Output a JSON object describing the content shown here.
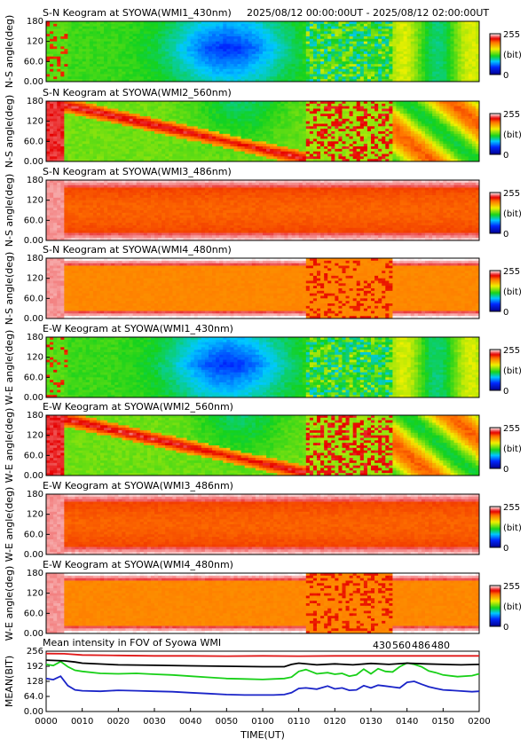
{
  "header": {
    "time_range": "2025/08/12 00:00:00UT - 2025/08/12 02:00:00UT"
  },
  "chart_data": [
    {
      "type": "heatmap",
      "title": "S-N Keogram at SYOWA(WMI1_430nm)",
      "ylabel": "N-S angle(deg)",
      "yticks": [
        "0.00",
        "60.0",
        "120",
        "180"
      ],
      "ylim": [
        0,
        180
      ],
      "colorbar": {
        "max": "255",
        "unit": "(bit)",
        "min": "0"
      },
      "palette": "dim"
    },
    {
      "type": "heatmap",
      "title": "S-N Keogram at SYOWA(WMI2_560nm)",
      "ylabel": "N-S angle(deg)",
      "yticks": [
        "0.00",
        "60.0",
        "120",
        "180"
      ],
      "ylim": [
        0,
        180
      ],
      "colorbar": {
        "max": "255",
        "unit": "(bit)",
        "min": "0"
      },
      "palette": "bright"
    },
    {
      "type": "heatmap",
      "title": "S-N Keogram at SYOWA(WMI3_486nm)",
      "ylabel": "N-S angle(deg)",
      "yticks": [
        "0.00",
        "60.0",
        "120",
        "180"
      ],
      "ylim": [
        0,
        180
      ],
      "colorbar": {
        "max": "255",
        "unit": "(bit)",
        "min": "0"
      },
      "palette": "red"
    },
    {
      "type": "heatmap",
      "title": "S-N Keogram at SYOWA(WMI4_480nm)",
      "ylabel": "N-S angle(deg)",
      "yticks": [
        "0.00",
        "60.0",
        "120",
        "180"
      ],
      "ylim": [
        0,
        180
      ],
      "colorbar": {
        "max": "255",
        "unit": "(bit)",
        "min": "0"
      },
      "palette": "orange"
    },
    {
      "type": "heatmap",
      "title": "E-W Keogram at SYOWA(WMI1_430nm)",
      "ylabel": "W-E angle(deg)",
      "yticks": [
        "0.00",
        "60.0",
        "120",
        "180"
      ],
      "ylim": [
        0,
        180
      ],
      "colorbar": {
        "max": "255",
        "unit": "(bit)",
        "min": "0"
      },
      "palette": "dim"
    },
    {
      "type": "heatmap",
      "title": "E-W Keogram at SYOWA(WMI2_560nm)",
      "ylabel": "W-E angle(deg)",
      "yticks": [
        "0.00",
        "60.0",
        "120",
        "180"
      ],
      "ylim": [
        0,
        180
      ],
      "colorbar": {
        "max": "255",
        "unit": "(bit)",
        "min": "0"
      },
      "palette": "bright"
    },
    {
      "type": "heatmap",
      "title": "E-W Keogram at SYOWA(WMI3_486nm)",
      "ylabel": "W-E angle(deg)",
      "yticks": [
        "0.00",
        "60.0",
        "120",
        "180"
      ],
      "ylim": [
        0,
        180
      ],
      "colorbar": {
        "max": "255",
        "unit": "(bit)",
        "min": "0"
      },
      "palette": "red"
    },
    {
      "type": "heatmap",
      "title": "E-W Keogram at SYOWA(WMI4_480nm)",
      "ylabel": "W-E angle(deg)",
      "yticks": [
        "0.00",
        "60.0",
        "120",
        "180"
      ],
      "ylim": [
        0,
        180
      ],
      "colorbar": {
        "max": "255",
        "unit": "(bit)",
        "min": "0"
      },
      "palette": "orange"
    },
    {
      "type": "line",
      "title": "Mean intensity in FOV of Syowa WMI",
      "ylabel": "MEAN(BIT)",
      "xlabel": "TIME(UT)",
      "ylim": [
        0,
        256
      ],
      "yticks": [
        {
          "value": 0,
          "label": "0.00"
        },
        {
          "value": 64,
          "label": "64.0"
        },
        {
          "value": 128,
          "label": "128"
        },
        {
          "value": 192,
          "label": "192"
        },
        {
          "value": 256,
          "label": "256"
        }
      ],
      "xlim": [
        0,
        120
      ],
      "xticks": [
        {
          "value": 0,
          "label": "0000"
        },
        {
          "value": 10,
          "label": "0010"
        },
        {
          "value": 20,
          "label": "0020"
        },
        {
          "value": 30,
          "label": "0030"
        },
        {
          "value": 40,
          "label": "0040"
        },
        {
          "value": 50,
          "label": "0050"
        },
        {
          "value": 60,
          "label": "0100"
        },
        {
          "value": 70,
          "label": "0110"
        },
        {
          "value": 80,
          "label": "0120"
        },
        {
          "value": 90,
          "label": "0130"
        },
        {
          "value": 100,
          "label": "0140"
        },
        {
          "value": 110,
          "label": "0150"
        },
        {
          "value": 120,
          "label": "0200"
        }
      ],
      "series": [
        {
          "name": "430",
          "color": "#1a24c8",
          "x": [
            0,
            2,
            4,
            6,
            8,
            10,
            15,
            20,
            25,
            30,
            35,
            40,
            45,
            50,
            55,
            60,
            63,
            66,
            68,
            70,
            72,
            75,
            78,
            80,
            82,
            84,
            86,
            88,
            90,
            92,
            94,
            96,
            98,
            100,
            102,
            104,
            106,
            108,
            110,
            114,
            118,
            120
          ],
          "y": [
            140,
            135,
            150,
            110,
            92,
            88,
            86,
            90,
            88,
            86,
            84,
            80,
            76,
            72,
            70,
            70,
            70,
            72,
            80,
            98,
            100,
            95,
            108,
            96,
            100,
            90,
            92,
            110,
            100,
            112,
            108,
            104,
            100,
            124,
            128,
            116,
            105,
            98,
            92,
            88,
            84,
            86
          ]
        },
        {
          "name": "560",
          "color": "#18d018",
          "x": [
            0,
            2,
            4,
            6,
            8,
            10,
            15,
            20,
            25,
            30,
            35,
            40,
            45,
            50,
            55,
            60,
            63,
            66,
            68,
            70,
            72,
            75,
            78,
            80,
            82,
            84,
            86,
            88,
            90,
            92,
            94,
            96,
            98,
            100,
            102,
            104,
            106,
            108,
            110,
            114,
            118,
            120
          ],
          "y": [
            200,
            195,
            212,
            190,
            175,
            170,
            162,
            160,
            162,
            158,
            155,
            150,
            145,
            140,
            138,
            136,
            138,
            140,
            146,
            170,
            178,
            160,
            165,
            158,
            162,
            150,
            156,
            180,
            160,
            182,
            170,
            168,
            190,
            206,
            200,
            190,
            172,
            165,
            155,
            148,
            152,
            160
          ]
        },
        {
          "name": "486",
          "color": "#e01818",
          "x": [
            0,
            5,
            10,
            20,
            30,
            40,
            50,
            60,
            70,
            80,
            90,
            100,
            110,
            120
          ],
          "y": [
            246,
            245,
            240,
            238,
            236,
            236,
            235,
            236,
            235,
            236,
            236,
            236,
            236,
            236
          ]
        },
        {
          "name": "480",
          "color": "#000000",
          "x": [
            0,
            5,
            8,
            10,
            20,
            30,
            40,
            50,
            60,
            66,
            68,
            70,
            75,
            80,
            85,
            90,
            95,
            100,
            105,
            110,
            115,
            120
          ],
          "y": [
            218,
            215,
            210,
            205,
            198,
            196,
            194,
            192,
            190,
            190,
            200,
            205,
            198,
            202,
            198,
            204,
            200,
            205,
            202,
            200,
            198,
            200
          ]
        }
      ]
    }
  ]
}
